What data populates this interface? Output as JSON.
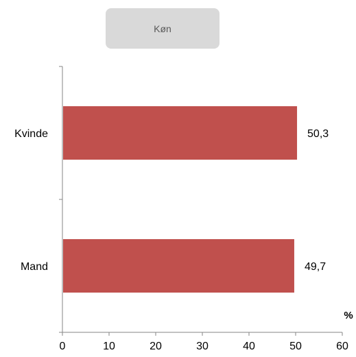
{
  "chart_data": {
    "type": "bar",
    "orientation": "horizontal",
    "title": "Køn",
    "categories": [
      "Kvinde",
      "Mand"
    ],
    "values": [
      50.3,
      49.7
    ],
    "data_labels": [
      "50,3",
      "49,7"
    ],
    "x_unit_label": "%",
    "xlim": [
      0,
      60
    ],
    "x_ticks": [
      "0",
      "10",
      "20",
      "30",
      "40",
      "50",
      "60"
    ],
    "grid": false,
    "legend": "none",
    "bar_color": "#c0504d"
  }
}
